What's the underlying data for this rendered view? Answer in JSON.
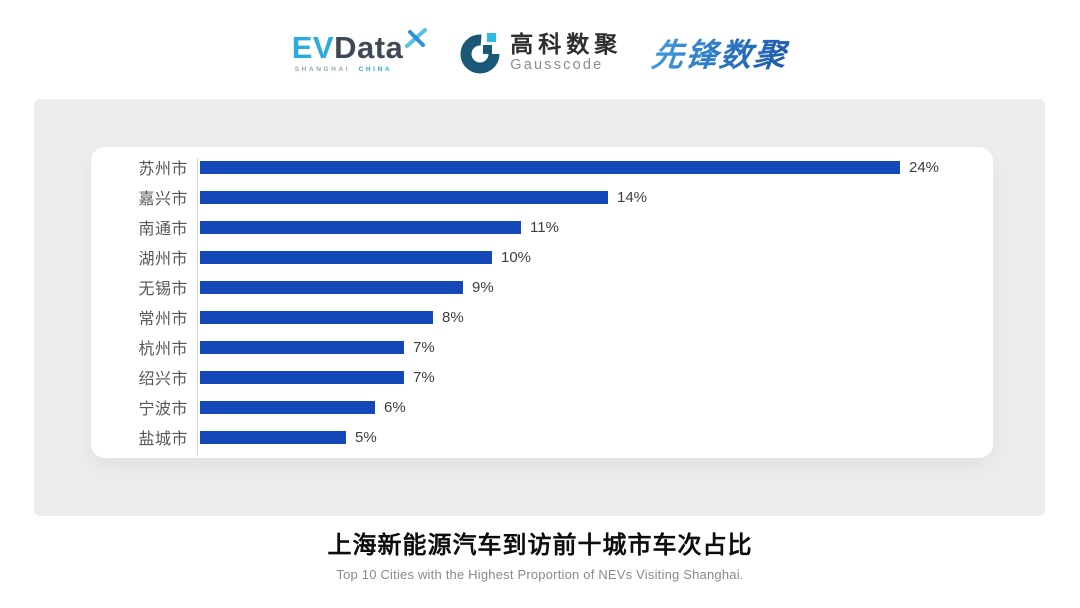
{
  "header": {
    "evdata_logo": {
      "ev": "EV",
      "data": "Data",
      "sub_shanghai": "SHANGHAI",
      "sub_china": "CHINA",
      "ev_color": "#2BABDF",
      "data_color": "#3E4956"
    },
    "gausscode_logo": {
      "name_cn": "高科数聚",
      "name_en": "Gausscode",
      "icon_color": "#1B5878",
      "icon_accent": "#2FB9E0"
    },
    "pioneer_logo": {
      "text": "先锋数聚",
      "color": "#2E79C8"
    }
  },
  "chart_data": {
    "type": "bar",
    "orientation": "horizontal",
    "title": "上海新能源汽车到访前十城市车次占比",
    "subtitle": "Top 10 Cities with the Highest Proportion of  NEVs Visiting Shanghai.",
    "categories": [
      "苏州市",
      "嘉兴市",
      "南通市",
      "湖州市",
      "无锡市",
      "常州市",
      "杭州市",
      "绍兴市",
      "宁波市",
      "盐城市"
    ],
    "values": [
      24,
      14,
      11,
      10,
      9,
      8,
      7,
      7,
      6,
      5
    ],
    "value_suffix": "%",
    "bar_color": "#1448B8",
    "axis_color": "#D9D9D9",
    "xlim": [
      0,
      24
    ],
    "grid": false,
    "legend": "none",
    "value_labels_position": "right-of-bar"
  }
}
